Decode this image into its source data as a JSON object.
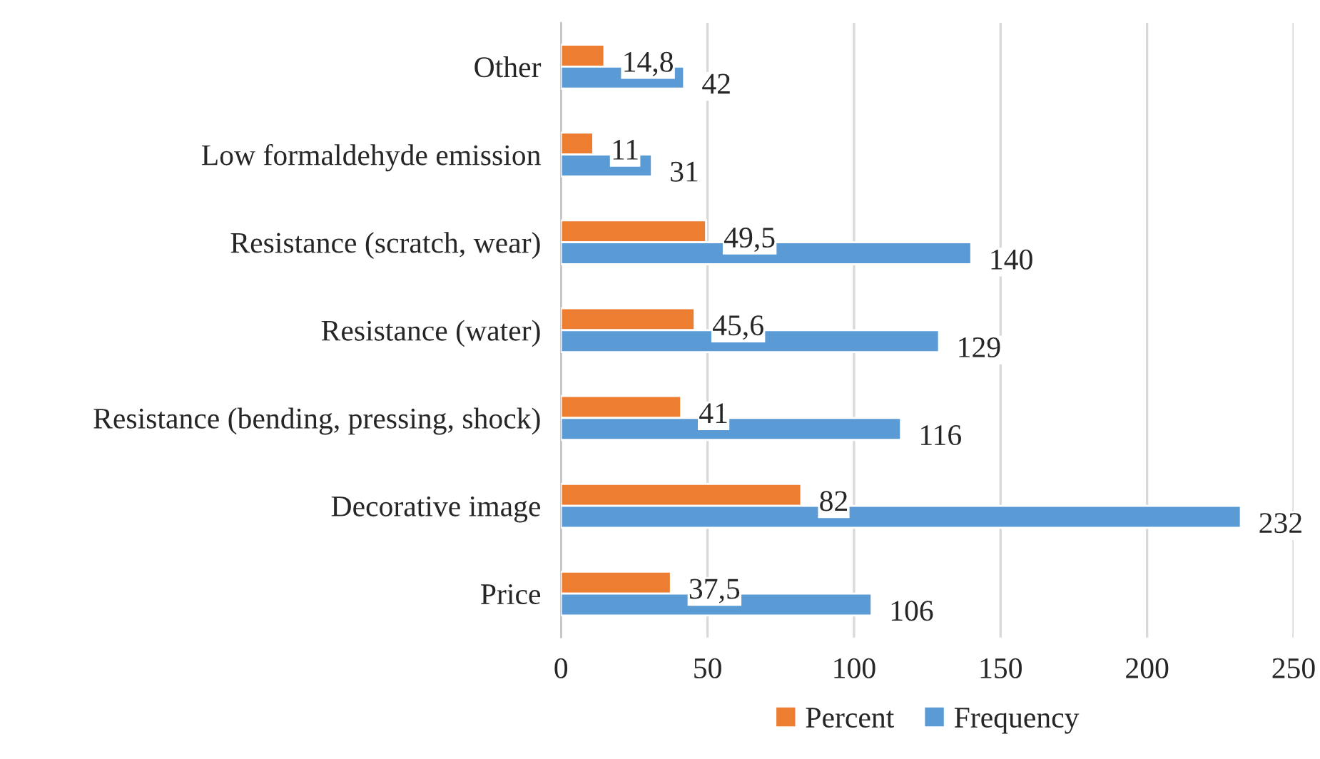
{
  "chart_data": {
    "type": "bar",
    "orientation": "horizontal",
    "categories": [
      "Other",
      "Low formaldehyde emission",
      "Resistance (scratch, wear)",
      "Resistance (water)",
      "Resistance (bending, pressing, shock)",
      "Decorative image",
      "Price"
    ],
    "series": [
      {
        "name": "Percent",
        "color": "#ed7d31",
        "values": [
          14.8,
          11,
          49.5,
          45.6,
          41,
          82,
          37.5
        ],
        "value_labels": [
          "14,8",
          "11",
          "49,5",
          "45,6",
          "41",
          "82",
          "37,5"
        ]
      },
      {
        "name": "Frequency",
        "color": "#5b9bd5",
        "values": [
          42,
          31,
          140,
          129,
          116,
          232,
          106
        ],
        "value_labels": [
          "42",
          "31",
          "140",
          "129",
          "116",
          "232",
          "106"
        ]
      }
    ],
    "xlim": [
      0,
      250
    ],
    "xticks": [
      0,
      50,
      100,
      150,
      200,
      250
    ],
    "grid": "x",
    "legend": "bottom"
  }
}
